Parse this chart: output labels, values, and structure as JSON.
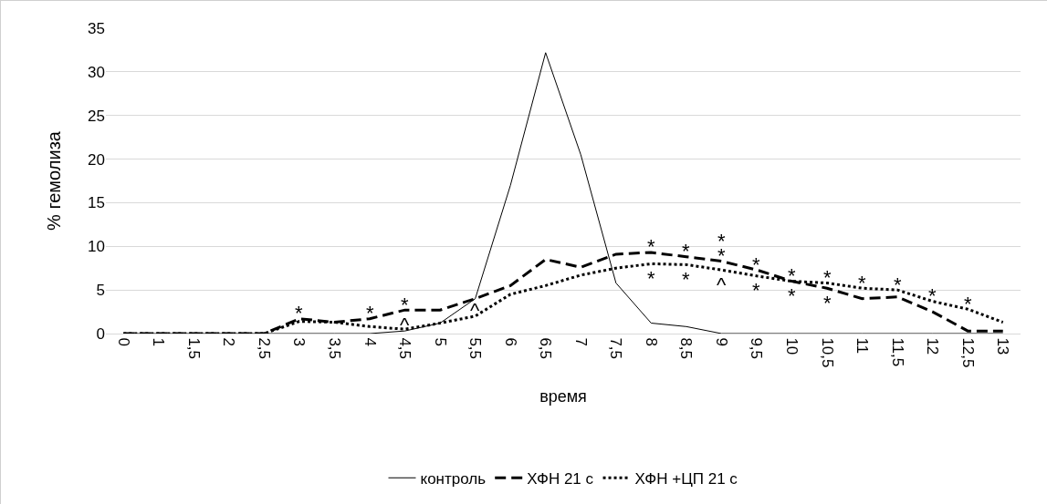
{
  "chart_data": {
    "type": "line",
    "xlabel": "время",
    "ylabel": "% гемолиза",
    "categories": [
      "0",
      "1",
      "1,5",
      "2",
      "2,5",
      "3",
      "3,5",
      "4",
      "4,5",
      "5",
      "5,5",
      "6",
      "6,5",
      "7",
      "7,5",
      "8",
      "8,5",
      "9",
      "9,5",
      "10",
      "10,5",
      "11",
      "11,5",
      "12",
      "12,5",
      "13"
    ],
    "series": [
      {
        "name": "контроль",
        "color": "#000000",
        "line_style": "solid",
        "values": [
          0,
          0,
          0,
          0,
          0,
          0,
          0,
          0,
          0.3,
          1.2,
          4,
          17,
          32.2,
          20.5,
          5.8,
          1.2,
          0.8,
          0,
          0,
          0,
          0,
          0,
          0,
          0,
          0,
          0
        ]
      },
      {
        "name": "ХФН 21 с",
        "color": "#000000",
        "line_style": "dashed",
        "values": [
          0,
          0,
          0,
          0,
          0,
          1.7,
          1.3,
          1.7,
          2.7,
          2.7,
          4,
          5.5,
          8.5,
          7.6,
          9.1,
          9.3,
          8.8,
          8.3,
          7.3,
          6,
          5.2,
          4,
          4.2,
          2.5,
          0.3,
          0.3
        ]
      },
      {
        "name": "ХФН +ЦП 21 с",
        "color": "#000000",
        "line_style": "dotted",
        "values": [
          0,
          0,
          0,
          0,
          0,
          1.4,
          1.3,
          0.8,
          0.5,
          1.2,
          2,
          4.5,
          5.5,
          6.7,
          7.5,
          8,
          7.9,
          7.3,
          6.6,
          6,
          5.8,
          5.2,
          5,
          3.7,
          2.8,
          1.3
        ]
      }
    ],
    "ylim": [
      0,
      35
    ],
    "yticks": [
      0,
      5,
      10,
      15,
      20,
      25,
      30,
      35
    ],
    "grid": "y",
    "legend": "bottom",
    "marker": "none",
    "annotations": [
      {
        "text": "^",
        "x": "4,5",
        "y": 2.7
      },
      {
        "text": "^",
        "x": "5,5",
        "y": 2
      },
      {
        "text": "^",
        "x": "9",
        "y": 7.3
      },
      {
        "text": "*",
        "x": "3",
        "y": 1.7
      },
      {
        "text": "*",
        "x": "4",
        "y": 1.7
      },
      {
        "text": "*",
        "x": "4,5",
        "y": 2.7
      },
      {
        "text": "*",
        "x": "8",
        "y": 9.3
      },
      {
        "text": "*",
        "x": "8,5",
        "y": 8.8
      },
      {
        "text": "*",
        "x": "9",
        "y": 8.3
      },
      {
        "text": "*",
        "x": "9,5",
        "y": 7.3
      },
      {
        "text": "*",
        "x": "10",
        "y": 6
      },
      {
        "text": "*",
        "x": "10,5",
        "y": 5.8
      },
      {
        "text": "*",
        "x": "11",
        "y": 5.2
      },
      {
        "text": "*",
        "x": "11,5",
        "y": 5
      },
      {
        "text": "*",
        "x": "12",
        "y": 3.7
      },
      {
        "text": "*",
        "x": "12,5",
        "y": 2.8
      },
      {
        "text": "*",
        "x": "8",
        "y": 8
      },
      {
        "text": "*",
        "x": "8,5",
        "y": 7.9
      },
      {
        "text": "*",
        "x": "9",
        "y": 8.3
      },
      {
        "text": "*",
        "x": "9,5",
        "y": 6.6
      },
      {
        "text": "*",
        "x": "10",
        "y": 6
      },
      {
        "text": "*",
        "x": "10,5",
        "y": 5.2
      }
    ]
  }
}
